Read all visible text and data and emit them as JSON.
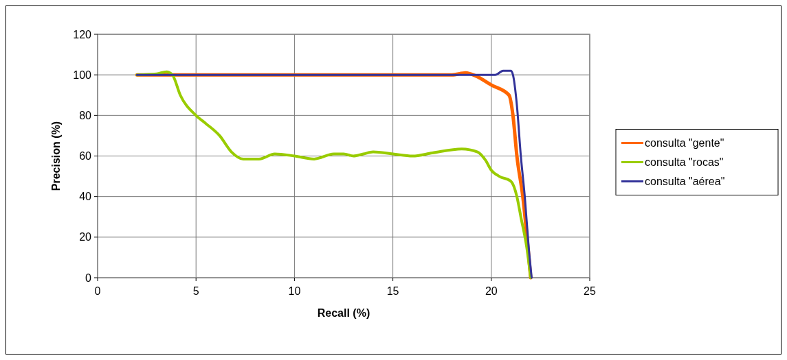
{
  "chart_data": {
    "type": "line",
    "xlabel": "Recall (%)",
    "ylabel": "Precision (%)",
    "xlim": [
      0,
      25
    ],
    "xticks": [
      0,
      5,
      10,
      15,
      20,
      25
    ],
    "ylim": [
      0,
      120
    ],
    "yticks": [
      0,
      20,
      40,
      60,
      80,
      100,
      120
    ],
    "grid": true,
    "legend": "right",
    "marker": "none",
    "line_style": "solid",
    "series": [
      {
        "name": "consulta \"gente\"",
        "color": "#ff6600",
        "x": [
          2,
          18,
          18.7,
          19.2,
          20,
          20.9,
          21.1,
          21.3,
          21.6,
          22
        ],
        "values": [
          100,
          100,
          101,
          99.5,
          95,
          90,
          80,
          60,
          40,
          0
        ]
      },
      {
        "name": "consulta \"rocas\"",
        "color": "#99cc00",
        "x": [
          2,
          3,
          3.5,
          3.8,
          4.2,
          5,
          5.5,
          6.2,
          6.8,
          7.4,
          8.2,
          9,
          10,
          11,
          12,
          12.5,
          13,
          13.5,
          14,
          15,
          16,
          17,
          18.5,
          19.3,
          19.7,
          20,
          20.4,
          21,
          21.3,
          21.5,
          21.8,
          22
        ],
        "values": [
          100,
          100.5,
          101.5,
          100,
          90,
          80,
          76,
          70,
          62,
          58.5,
          58.5,
          61,
          60,
          58.5,
          61,
          61,
          60,
          61,
          62,
          61,
          60,
          61.5,
          63.5,
          62,
          58,
          53,
          50,
          47.5,
          40,
          30,
          15,
          0
        ]
      },
      {
        "name": "consulta \"aérea\"",
        "color": "#333399",
        "x": [
          2,
          20.2,
          20.6,
          21,
          21.1,
          21.3,
          21.5,
          21.7,
          21.9,
          22.05
        ],
        "values": [
          100,
          100,
          102,
          102,
          100,
          85,
          60,
          40,
          15,
          0
        ]
      }
    ]
  }
}
